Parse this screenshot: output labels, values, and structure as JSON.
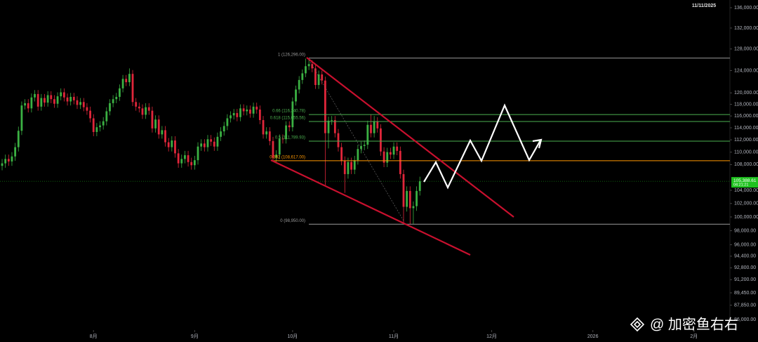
{
  "chart_data": {
    "type": "candlestick",
    "date_label": "11/11/2025",
    "log_scale": true,
    "up_color": "#3bb143",
    "down_color": "#e0263a",
    "xlim": [
      -0.65,
      223
    ],
    "xticks": [
      {
        "value": 28,
        "label": "8月"
      },
      {
        "value": 59,
        "label": "9月"
      },
      {
        "value": 89,
        "label": "10月"
      },
      {
        "value": 120,
        "label": "11月"
      },
      {
        "value": 150,
        "label": "12月"
      },
      {
        "value": 181,
        "label": "2026"
      },
      {
        "value": 212,
        "label": "2月"
      }
    ],
    "ylim": [
      84690,
      137550
    ],
    "yticks": [
      {
        "value": 136000,
        "label": "136,000.00"
      },
      {
        "value": 132000,
        "label": "132,000.00"
      },
      {
        "value": 128000,
        "label": "128,000.00"
      },
      {
        "value": 124000,
        "label": "124,000.00"
      },
      {
        "value": 120000,
        "label": "120,000.00"
      },
      {
        "value": 118000,
        "label": "118,000.00"
      },
      {
        "value": 116000,
        "label": "116,000.00"
      },
      {
        "value": 114000,
        "label": "114,000.00"
      },
      {
        "value": 112000,
        "label": "112,000.00"
      },
      {
        "value": 110000,
        "label": "110,000.00"
      },
      {
        "value": 108000,
        "label": "108,000.00"
      },
      {
        "value": 104000,
        "label": "104,000.00"
      },
      {
        "value": 102000,
        "label": "102,000.00"
      },
      {
        "value": 100000,
        "label": "100,000.00"
      },
      {
        "value": 98000,
        "label": "98,000.00"
      },
      {
        "value": 96000,
        "label": "96,000.00"
      },
      {
        "value": 94400,
        "label": "94,400.00"
      },
      {
        "value": 92800,
        "label": "92,800.00"
      },
      {
        "value": 91200,
        "label": "91,200.00"
      },
      {
        "value": 89450,
        "label": "89,450.00"
      },
      {
        "value": 87850,
        "label": "87,850.00"
      },
      {
        "value": 86000,
        "label": "86,000.00"
      }
    ],
    "price_marker": {
      "value": 105388.61,
      "label": "105,388.61",
      "countdown": "04:21:21",
      "color": "#1fc21f"
    },
    "levels": [
      {
        "label": "1 (126,296.00)",
        "value": 126296,
        "color": "#9a9a9a"
      },
      {
        "label": "0.66 (116,240.78)",
        "value": 116240.78,
        "color": "#4caf50"
      },
      {
        "label": "0.618 (115,055.56)",
        "value": 115055.56,
        "color": "#4caf50"
      },
      {
        "label": "0.5 (111,789.93)",
        "value": 111789.93,
        "color": "#4caf50"
      },
      {
        "label": "0.382 (108,617.00)",
        "value": 108617,
        "color": "#ff9800"
      },
      {
        "label": "0 (98,950.00)",
        "value": 98950,
        "color": "#9a9a9a"
      }
    ],
    "watermark": "@ 加密鱼右右",
    "open": [
      107800,
      108200,
      108900,
      108500,
      109300,
      110800,
      113500,
      117800,
      118200,
      117300,
      119200,
      119800,
      117600,
      119100,
      118300,
      119600,
      118900,
      118100,
      119400,
      120100,
      119200,
      118500,
      119300,
      118700,
      117900,
      118400,
      117500,
      116900,
      115600,
      113300,
      114100,
      114400,
      115100,
      116800,
      118200,
      118900,
      119300,
      120800,
      122500,
      121900,
      123400,
      118400,
      117600,
      117300,
      116200,
      117500,
      116900,
      113900,
      115400,
      112900,
      113600,
      111600,
      110800,
      111900,
      109800,
      108200,
      108900,
      109500,
      108400,
      107900,
      108700,
      110900,
      111400,
      110800,
      112100,
      111700,
      110900,
      112500,
      113400,
      114300,
      115600,
      116100,
      116500,
      115800,
      117300,
      116800,
      117100,
      116400,
      117600,
      117100,
      115300,
      112900,
      113400,
      111800,
      109100,
      109600,
      112200,
      112100,
      114400,
      114100,
      118500,
      120600,
      122300,
      123500,
      124800,
      125200,
      124400,
      121400,
      123300,
      122200,
      113100,
      115200,
      115300,
      113100,
      110800,
      108600,
      106500,
      108400,
      107200,
      108700,
      110500,
      111000,
      111200,
      114500,
      113100,
      115100,
      113900,
      110100,
      108300,
      110000,
      109600,
      110900,
      110200,
      106500,
      101500,
      103900,
      101300,
      101600,
      103900
    ],
    "high": [
      108900,
      109600,
      109600,
      110000,
      111500,
      114200,
      118500,
      118900,
      118900,
      119900,
      120500,
      120500,
      119800,
      119800,
      120300,
      120300,
      119600,
      120100,
      120800,
      120800,
      119900,
      120000,
      120000,
      119400,
      119100,
      119100,
      118200,
      117600,
      116300,
      114800,
      115100,
      115800,
      117500,
      118900,
      119600,
      120000,
      121500,
      123200,
      123200,
      124400,
      124100,
      119100,
      118300,
      118000,
      118200,
      118200,
      117600,
      116100,
      116100,
      114300,
      114300,
      112300,
      112600,
      112600,
      110500,
      109600,
      110200,
      110200,
      109100,
      109400,
      111600,
      112100,
      112100,
      112800,
      112800,
      112400,
      113200,
      114100,
      115000,
      116300,
      116800,
      117200,
      117200,
      118000,
      118000,
      117800,
      117800,
      118300,
      118300,
      117800,
      116000,
      114100,
      114100,
      112500,
      110300,
      112900,
      112900,
      115100,
      115100,
      119200,
      121300,
      123000,
      124200,
      126200,
      126000,
      125900,
      125100,
      124000,
      124000,
      122900,
      115900,
      116000,
      116000,
      113800,
      111500,
      109300,
      109100,
      109100,
      109400,
      111200,
      111700,
      111900,
      115200,
      116300,
      116000,
      115800,
      114600,
      110800,
      110700,
      110700,
      111600,
      111600,
      110900,
      107200,
      104600,
      104600,
      102300,
      104600,
      106100
    ],
    "low": [
      107100,
      107500,
      107800,
      107800,
      108600,
      110100,
      112800,
      117100,
      116600,
      116600,
      118500,
      116900,
      116900,
      117600,
      117600,
      118200,
      117400,
      117400,
      118700,
      118500,
      117800,
      117800,
      118000,
      117200,
      117200,
      116800,
      116200,
      114900,
      112600,
      112600,
      113400,
      113700,
      114400,
      116100,
      117500,
      118200,
      118600,
      120100,
      121200,
      121200,
      117700,
      116900,
      116600,
      115500,
      115500,
      116200,
      113200,
      113200,
      112200,
      112200,
      110900,
      110100,
      110100,
      109100,
      107500,
      107500,
      108200,
      107700,
      107200,
      107200,
      108000,
      110200,
      110100,
      110100,
      111000,
      110200,
      110200,
      111800,
      112700,
      113600,
      114900,
      115400,
      115100,
      115100,
      116100,
      116100,
      115700,
      115700,
      116400,
      114600,
      112200,
      112200,
      111100,
      108600,
      108400,
      108900,
      111400,
      111400,
      113400,
      113400,
      117800,
      119900,
      121600,
      122800,
      124100,
      123700,
      120700,
      120700,
      121500,
      104800,
      110600,
      114500,
      112400,
      110100,
      107900,
      103600,
      105800,
      106500,
      106500,
      108000,
      109800,
      110300,
      110500,
      112400,
      112400,
      113200,
      109400,
      107600,
      107600,
      108900,
      108900,
      109500,
      105800,
      99000,
      100800,
      98900,
      99000,
      100900,
      103200
    ],
    "close": [
      108200,
      108900,
      108500,
      109300,
      110800,
      113500,
      117800,
      118200,
      117300,
      119200,
      119800,
      117600,
      119100,
      118300,
      119600,
      118900,
      118100,
      119400,
      120100,
      119200,
      118500,
      119300,
      118700,
      117900,
      118400,
      117500,
      116900,
      115600,
      113300,
      114100,
      114400,
      115100,
      116800,
      118200,
      118900,
      119300,
      120800,
      122500,
      121900,
      123400,
      118400,
      117600,
      117300,
      116200,
      117500,
      116900,
      113900,
      115400,
      112900,
      113600,
      111600,
      110800,
      111900,
      109800,
      108200,
      108900,
      109500,
      108400,
      107900,
      108700,
      110900,
      111400,
      110800,
      112100,
      111700,
      110900,
      112500,
      113400,
      114300,
      115600,
      116100,
      116500,
      115800,
      117300,
      116800,
      117100,
      116400,
      117600,
      117100,
      115300,
      112900,
      113400,
      111800,
      109100,
      109600,
      112200,
      112100,
      114400,
      114100,
      118500,
      120600,
      122300,
      123500,
      124800,
      125200,
      124400,
      121400,
      123300,
      122200,
      113100,
      115200,
      115300,
      113100,
      110800,
      108600,
      106500,
      108400,
      107200,
      108700,
      110500,
      111000,
      111200,
      114500,
      113100,
      115100,
      113900,
      110100,
      108300,
      110000,
      109600,
      110900,
      110200,
      106500,
      101500,
      103900,
      101300,
      101600,
      103900,
      105388.61
    ]
  }
}
